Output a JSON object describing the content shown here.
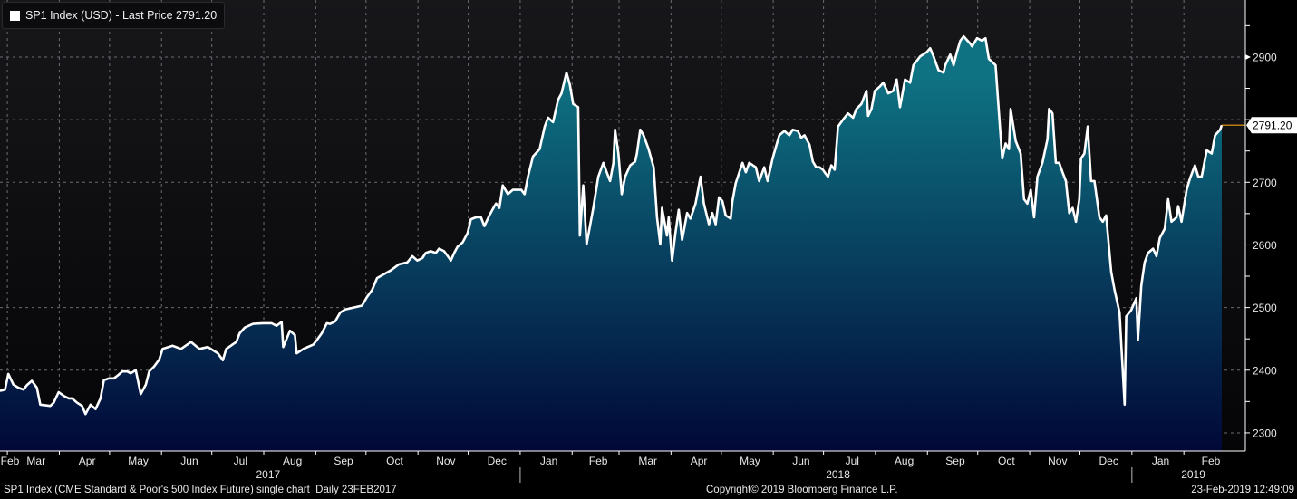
{
  "legend": {
    "label": "SP1 Index (USD) - Last Price 2791.20",
    "swatch_color": "#ffffff"
  },
  "footer": {
    "left": "SP1 Index (CME Standard & Poor's 500 Index Future) single chart  Daily 23FEB2017",
    "center": "Copyright© 2019 Bloomberg Finance L.P.",
    "right": "23-Feb-2019 12:49:09"
  },
  "colors": {
    "line": "#ffffff",
    "fill_top": "#0e7282",
    "fill_bottom": "#010838",
    "last_price_line": "#f39c12"
  },
  "chart_data": {
    "type": "area",
    "title": "SP1 Index (USD) - Last Price",
    "xlabel": "",
    "ylabel": "",
    "x_unit": "calendar days since 23-Feb-2017",
    "ylim": [
      2271,
      2991
    ],
    "xlim": [
      0,
      729
    ],
    "grid": true,
    "y_ticks": [
      2300,
      2400,
      2500,
      2600,
      2700,
      2800,
      2900
    ],
    "y_tick_labels": [
      "2300",
      "2400",
      "2500",
      "2600",
      "2700",
      "2900"
    ],
    "last_price": 2791.2,
    "last_price_label": "2791.20",
    "month_labels": [
      "Feb",
      "Mar",
      "Apr",
      "May",
      "Jun",
      "Jul",
      "Aug",
      "Sep",
      "Oct",
      "Nov",
      "Dec",
      "Jan",
      "Feb",
      "Mar",
      "Apr",
      "May",
      "Jun",
      "Jul",
      "Aug",
      "Sep",
      "Oct",
      "Nov",
      "Dec",
      "Jan",
      "Feb"
    ],
    "year_labels": [
      {
        "label": "2017",
        "day": 160
      },
      {
        "label": "2018",
        "day": 500
      },
      {
        "label": "2019",
        "day": 712
      }
    ],
    "series": [
      {
        "name": "SP1 Index",
        "points": [
          [
            0,
            2367
          ],
          [
            3,
            2369
          ],
          [
            5,
            2394
          ],
          [
            8,
            2377
          ],
          [
            11,
            2372
          ],
          [
            14,
            2369
          ],
          [
            16,
            2376
          ],
          [
            19,
            2383
          ],
          [
            22,
            2372
          ],
          [
            24,
            2345
          ],
          [
            30,
            2343
          ],
          [
            32,
            2348
          ],
          [
            35,
            2365
          ],
          [
            38,
            2359
          ],
          [
            41,
            2355
          ],
          [
            43,
            2355
          ],
          [
            46,
            2348
          ],
          [
            49,
            2343
          ],
          [
            51,
            2330
          ],
          [
            54,
            2345
          ],
          [
            57,
            2338
          ],
          [
            60,
            2355
          ],
          [
            62,
            2384
          ],
          [
            65,
            2387
          ],
          [
            68,
            2387
          ],
          [
            70,
            2391
          ],
          [
            73,
            2398
          ],
          [
            76,
            2398
          ],
          [
            78,
            2395
          ],
          [
            81,
            2400
          ],
          [
            84,
            2362
          ],
          [
            87,
            2377
          ],
          [
            89,
            2398
          ],
          [
            92,
            2406
          ],
          [
            95,
            2417
          ],
          [
            97,
            2434
          ],
          [
            103,
            2439
          ],
          [
            108,
            2434
          ],
          [
            114,
            2445
          ],
          [
            119,
            2434
          ],
          [
            124,
            2437
          ],
          [
            130,
            2427
          ],
          [
            133,
            2416
          ],
          [
            135,
            2434
          ],
          [
            141,
            2445
          ],
          [
            143,
            2459
          ],
          [
            146,
            2468
          ],
          [
            151,
            2474
          ],
          [
            157,
            2475
          ],
          [
            162,
            2475
          ],
          [
            165,
            2471
          ],
          [
            168,
            2477
          ],
          [
            169,
            2437
          ],
          [
            173,
            2463
          ],
          [
            176,
            2456
          ],
          [
            177,
            2427
          ],
          [
            181,
            2434
          ],
          [
            187,
            2441
          ],
          [
            189,
            2448
          ],
          [
            192,
            2459
          ],
          [
            195,
            2475
          ],
          [
            197,
            2474
          ],
          [
            200,
            2478
          ],
          [
            203,
            2492
          ],
          [
            206,
            2497
          ],
          [
            211,
            2500
          ],
          [
            216,
            2503
          ],
          [
            219,
            2517
          ],
          [
            222,
            2528
          ],
          [
            225,
            2547
          ],
          [
            227,
            2550
          ],
          [
            233,
            2559
          ],
          [
            238,
            2569
          ],
          [
            243,
            2572
          ],
          [
            246,
            2582
          ],
          [
            249,
            2575
          ],
          [
            252,
            2579
          ],
          [
            254,
            2587
          ],
          [
            257,
            2590
          ],
          [
            260,
            2587
          ],
          [
            262,
            2594
          ],
          [
            265,
            2590
          ],
          [
            268,
            2579
          ],
          [
            269,
            2575
          ],
          [
            271,
            2587
          ],
          [
            273,
            2597
          ],
          [
            276,
            2604
          ],
          [
            279,
            2619
          ],
          [
            281,
            2641
          ],
          [
            284,
            2644
          ],
          [
            287,
            2644
          ],
          [
            289,
            2630
          ],
          [
            292,
            2647
          ],
          [
            295,
            2662
          ],
          [
            296,
            2666
          ],
          [
            298,
            2659
          ],
          [
            300,
            2695
          ],
          [
            303,
            2681
          ],
          [
            306,
            2688
          ],
          [
            311,
            2688
          ],
          [
            313,
            2681
          ],
          [
            315,
            2709
          ],
          [
            318,
            2741
          ],
          [
            322,
            2753
          ],
          [
            325,
            2789
          ],
          [
            327,
            2803
          ],
          [
            330,
            2796
          ],
          [
            333,
            2832
          ],
          [
            335,
            2842
          ],
          [
            338,
            2875
          ],
          [
            340,
            2856
          ],
          [
            342,
            2825
          ],
          [
            345,
            2820
          ],
          [
            346,
            2615
          ],
          [
            348,
            2695
          ],
          [
            350,
            2601
          ],
          [
            352,
            2630
          ],
          [
            354,
            2659
          ],
          [
            357,
            2709
          ],
          [
            360,
            2731
          ],
          [
            362,
            2716
          ],
          [
            364,
            2702
          ],
          [
            366,
            2731
          ],
          [
            367,
            2784
          ],
          [
            369,
            2746
          ],
          [
            371,
            2681
          ],
          [
            373,
            2709
          ],
          [
            376,
            2727
          ],
          [
            379,
            2733
          ],
          [
            380,
            2746
          ],
          [
            382,
            2784
          ],
          [
            384,
            2775
          ],
          [
            387,
            2753
          ],
          [
            390,
            2724
          ],
          [
            392,
            2644
          ],
          [
            394,
            2601
          ],
          [
            395,
            2659
          ],
          [
            398,
            2615
          ],
          [
            399,
            2644
          ],
          [
            401,
            2575
          ],
          [
            403,
            2619
          ],
          [
            405,
            2656
          ],
          [
            407,
            2608
          ],
          [
            410,
            2651
          ],
          [
            412,
            2642
          ],
          [
            415,
            2666
          ],
          [
            418,
            2709
          ],
          [
            420,
            2666
          ],
          [
            423,
            2633
          ],
          [
            425,
            2651
          ],
          [
            427,
            2633
          ],
          [
            429,
            2676
          ],
          [
            431,
            2670
          ],
          [
            433,
            2647
          ],
          [
            436,
            2642
          ],
          [
            437,
            2670
          ],
          [
            439,
            2699
          ],
          [
            443,
            2731
          ],
          [
            445,
            2716
          ],
          [
            447,
            2731
          ],
          [
            451,
            2724
          ],
          [
            453,
            2702
          ],
          [
            456,
            2724
          ],
          [
            458,
            2702
          ],
          [
            461,
            2738
          ],
          [
            465,
            2775
          ],
          [
            468,
            2782
          ],
          [
            471,
            2775
          ],
          [
            473,
            2784
          ],
          [
            476,
            2782
          ],
          [
            478,
            2771
          ],
          [
            480,
            2775
          ],
          [
            483,
            2760
          ],
          [
            485,
            2733
          ],
          [
            487,
            2724
          ],
          [
            489,
            2724
          ],
          [
            491,
            2720
          ],
          [
            492,
            2716
          ],
          [
            494,
            2709
          ],
          [
            496,
            2727
          ],
          [
            498,
            2720
          ],
          [
            500,
            2789
          ],
          [
            503,
            2800
          ],
          [
            506,
            2810
          ],
          [
            509,
            2803
          ],
          [
            511,
            2817
          ],
          [
            514,
            2825
          ],
          [
            517,
            2846
          ],
          [
            518,
            2806
          ],
          [
            520,
            2817
          ],
          [
            522,
            2846
          ],
          [
            525,
            2853
          ],
          [
            527,
            2859
          ],
          [
            530,
            2842
          ],
          [
            533,
            2846
          ],
          [
            535,
            2864
          ],
          [
            537,
            2820
          ],
          [
            540,
            2864
          ],
          [
            543,
            2859
          ],
          [
            545,
            2887
          ],
          [
            549,
            2901
          ],
          [
            553,
            2908
          ],
          [
            555,
            2914
          ],
          [
            557,
            2901
          ],
          [
            560,
            2879
          ],
          [
            563,
            2875
          ],
          [
            564,
            2887
          ],
          [
            567,
            2904
          ],
          [
            569,
            2887
          ],
          [
            571,
            2908
          ],
          [
            573,
            2926
          ],
          [
            575,
            2933
          ],
          [
            579,
            2921
          ],
          [
            580,
            2917
          ],
          [
            583,
            2930
          ],
          [
            586,
            2926
          ],
          [
            588,
            2930
          ],
          [
            590,
            2897
          ],
          [
            594,
            2887
          ],
          [
            597,
            2775
          ],
          [
            598,
            2738
          ],
          [
            600,
            2762
          ],
          [
            602,
            2753
          ],
          [
            603,
            2817
          ],
          [
            606,
            2766
          ],
          [
            609,
            2746
          ],
          [
            611,
            2673
          ],
          [
            613,
            2666
          ],
          [
            615,
            2688
          ],
          [
            617,
            2644
          ],
          [
            619,
            2709
          ],
          [
            622,
            2731
          ],
          [
            625,
            2769
          ],
          [
            626,
            2817
          ],
          [
            628,
            2810
          ],
          [
            630,
            2731
          ],
          [
            632,
            2731
          ],
          [
            634,
            2716
          ],
          [
            636,
            2702
          ],
          [
            638,
            2651
          ],
          [
            640,
            2659
          ],
          [
            642,
            2637
          ],
          [
            644,
            2673
          ],
          [
            645,
            2738
          ],
          [
            647,
            2746
          ],
          [
            649,
            2789
          ],
          [
            651,
            2702
          ],
          [
            653,
            2702
          ],
          [
            656,
            2644
          ],
          [
            658,
            2637
          ],
          [
            660,
            2647
          ],
          [
            663,
            2557
          ],
          [
            665,
            2528
          ],
          [
            668,
            2492
          ],
          [
            671,
            2345
          ],
          [
            672,
            2486
          ],
          [
            675,
            2496
          ],
          [
            678,
            2515
          ],
          [
            679,
            2448
          ],
          [
            681,
            2535
          ],
          [
            683,
            2572
          ],
          [
            685,
            2587
          ],
          [
            688,
            2594
          ],
          [
            690,
            2582
          ],
          [
            692,
            2611
          ],
          [
            695,
            2626
          ],
          [
            697,
            2673
          ],
          [
            699,
            2637
          ],
          [
            702,
            2644
          ],
          [
            703,
            2662
          ],
          [
            705,
            2637
          ],
          [
            708,
            2688
          ],
          [
            710,
            2706
          ],
          [
            713,
            2727
          ],
          [
            715,
            2709
          ],
          [
            717,
            2709
          ],
          [
            720,
            2751
          ],
          [
            723,
            2746
          ],
          [
            725,
            2775
          ],
          [
            728,
            2784
          ],
          [
            729,
            2791.2
          ]
        ]
      }
    ]
  }
}
